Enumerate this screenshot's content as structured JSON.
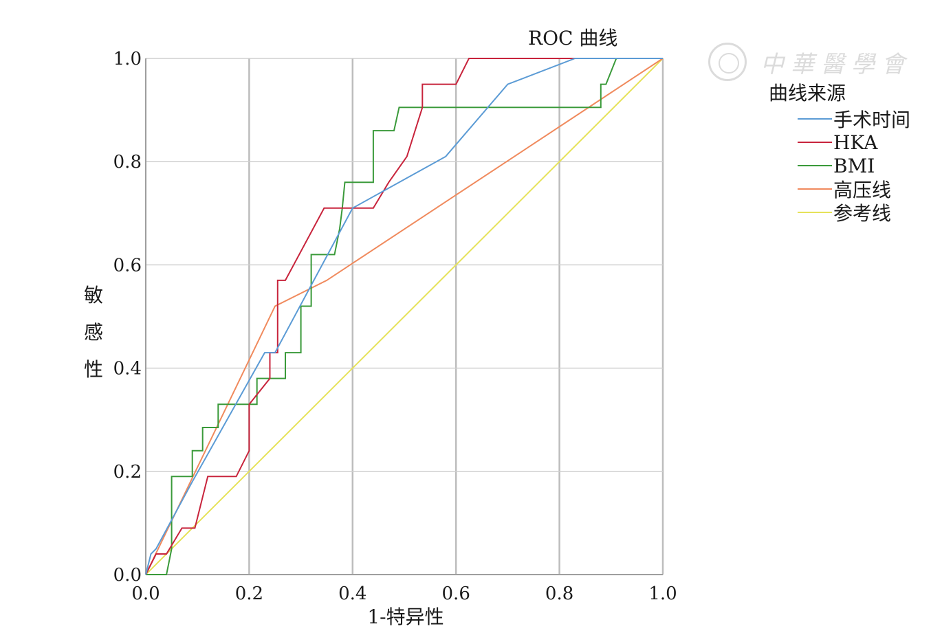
{
  "chart_data": {
    "type": "line",
    "title": "ROC 曲线",
    "xlabel": "1-特异性",
    "ylabel": "敏感性",
    "xlim": [
      0,
      1
    ],
    "ylim": [
      0,
      1
    ],
    "xticks": [
      "0.0",
      "0.2",
      "0.4",
      "0.6",
      "0.8",
      "1.0"
    ],
    "yticks": [
      "0.0",
      "0.2",
      "0.4",
      "0.6",
      "0.8",
      "1.0"
    ],
    "grid": true,
    "legend_title": "曲线来源",
    "legend_position": "right",
    "series": [
      {
        "name": "手术时间",
        "color": "#5b9bd5",
        "x": [
          0,
          0.01,
          0.02,
          0.09,
          0.23,
          0.25,
          0.4,
          0.58,
          0.7,
          0.83,
          1.0
        ],
        "y": [
          0,
          0.04,
          0.05,
          0.18,
          0.43,
          0.43,
          0.71,
          0.81,
          0.95,
          1.0,
          1.0
        ]
      },
      {
        "name": "HKA",
        "color": "#c8243c",
        "x": [
          0,
          0.02,
          0.04,
          0.07,
          0.095,
          0.12,
          0.175,
          0.2,
          0.2,
          0.24,
          0.24,
          0.255,
          0.255,
          0.27,
          0.345,
          0.44,
          0.47,
          0.505,
          0.535,
          0.535,
          0.6,
          0.625,
          1.0
        ],
        "y": [
          0,
          0.04,
          0.04,
          0.09,
          0.09,
          0.19,
          0.19,
          0.24,
          0.33,
          0.38,
          0.43,
          0.43,
          0.57,
          0.57,
          0.71,
          0.71,
          0.76,
          0.81,
          0.905,
          0.95,
          0.95,
          1.0,
          1.0
        ]
      },
      {
        "name": "BMI",
        "color": "#3a9a3a",
        "x": [
          0,
          0.04,
          0.05,
          0.05,
          0.09,
          0.09,
          0.11,
          0.11,
          0.14,
          0.14,
          0.21,
          0.215,
          0.215,
          0.27,
          0.27,
          0.3,
          0.3,
          0.32,
          0.32,
          0.365,
          0.375,
          0.38,
          0.385,
          0.4,
          0.44,
          0.44,
          0.48,
          0.49,
          0.53,
          0.88,
          0.88,
          0.89,
          0.91,
          1.0
        ],
        "y": [
          0,
          0,
          0.05,
          0.19,
          0.19,
          0.24,
          0.24,
          0.285,
          0.285,
          0.33,
          0.33,
          0.33,
          0.38,
          0.38,
          0.43,
          0.43,
          0.52,
          0.52,
          0.62,
          0.62,
          0.67,
          0.71,
          0.76,
          0.76,
          0.76,
          0.86,
          0.86,
          0.905,
          0.905,
          0.905,
          0.95,
          0.95,
          1.0,
          1.0
        ]
      },
      {
        "name": "高压线",
        "color": "#f08a5d",
        "x": [
          0,
          0.25,
          0.35,
          1.0
        ],
        "y": [
          0,
          0.52,
          0.57,
          1.0
        ]
      },
      {
        "name": "参考线",
        "color": "#e6e25a",
        "x": [
          0,
          1.0
        ],
        "y": [
          0,
          1.0
        ]
      }
    ]
  },
  "watermark": {
    "text": "中華醫學會"
  }
}
